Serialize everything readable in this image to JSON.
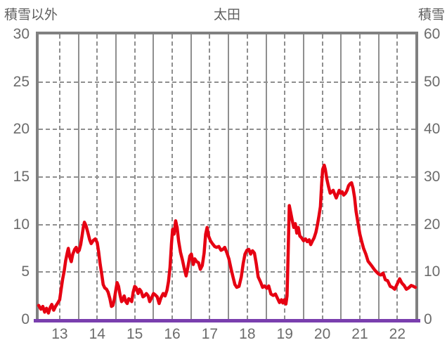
{
  "header": {
    "left_axis_title": "積雪以外",
    "station": "太田",
    "right_axis_title": "積雪"
  },
  "colors": {
    "line_red": "#e60012",
    "snow_purple": "#7a3fae",
    "frame_gray": "#808080",
    "grid_gray": "#8f8f8f",
    "text_gray": "#6b6b6b"
  },
  "chart_data": {
    "type": "line",
    "title": "太田",
    "grid": true,
    "x_axis": {
      "unit": "hour",
      "start": 12.44,
      "end": 22.48,
      "labeled_ticks": [
        13,
        14,
        15,
        16,
        17,
        18,
        19,
        20,
        21,
        22
      ],
      "tick_labels": [
        "13",
        "14",
        "15",
        "16",
        "17",
        "18",
        "19",
        "20",
        "21",
        "22"
      ],
      "half_hour_solid_lines": [
        13.5,
        14.5,
        15.5,
        16.5,
        17.5,
        18.5,
        19.5,
        20.5,
        21.5
      ]
    },
    "left_axis": {
      "title": "積雪以外",
      "min": 0,
      "max": 30,
      "ticks": [
        0,
        5,
        10,
        15,
        20,
        25,
        30
      ]
    },
    "right_axis": {
      "title": "積雪",
      "min": 0,
      "max": 60,
      "ticks": [
        0,
        10,
        20,
        30,
        40,
        50,
        60
      ]
    },
    "horizontal_gridline_values_left_axis": [
      5,
      10,
      15,
      20,
      25
    ],
    "series": [
      {
        "name": "積雪以外",
        "axis": "left",
        "color": "#e60012",
        "points": [
          [
            12.44,
            1.5
          ],
          [
            12.5,
            1.1
          ],
          [
            12.55,
            1.4
          ],
          [
            12.6,
            0.8
          ],
          [
            12.65,
            1.2
          ],
          [
            12.7,
            0.7
          ],
          [
            12.75,
            1.3
          ],
          [
            12.79,
            1.6
          ],
          [
            12.84,
            1.0
          ],
          [
            12.89,
            1.4
          ],
          [
            12.94,
            1.7
          ],
          [
            13.0,
            2.1
          ],
          [
            13.04,
            3.2
          ],
          [
            13.08,
            4.3
          ],
          [
            13.12,
            5.1
          ],
          [
            13.16,
            6.2
          ],
          [
            13.2,
            7.0
          ],
          [
            13.23,
            7.5
          ],
          [
            13.27,
            6.6
          ],
          [
            13.31,
            6.1
          ],
          [
            13.35,
            6.9
          ],
          [
            13.4,
            7.4
          ],
          [
            13.44,
            7.6
          ],
          [
            13.48,
            7.1
          ],
          [
            13.52,
            7.3
          ],
          [
            13.56,
            7.9
          ],
          [
            13.6,
            8.9
          ],
          [
            13.63,
            9.7
          ],
          [
            13.66,
            10.25
          ],
          [
            13.7,
            9.9
          ],
          [
            13.75,
            9.2
          ],
          [
            13.8,
            8.4
          ],
          [
            13.84,
            8.0
          ],
          [
            13.9,
            8.35
          ],
          [
            13.95,
            8.5
          ],
          [
            14.0,
            8.1
          ],
          [
            14.04,
            7.1
          ],
          [
            14.08,
            5.8
          ],
          [
            14.12,
            4.8
          ],
          [
            14.16,
            3.7
          ],
          [
            14.2,
            3.35
          ],
          [
            14.25,
            3.2
          ],
          [
            14.29,
            2.9
          ],
          [
            14.34,
            2.2
          ],
          [
            14.38,
            1.4
          ],
          [
            14.42,
            1.5
          ],
          [
            14.46,
            2.2
          ],
          [
            14.5,
            3.2
          ],
          [
            14.53,
            3.9
          ],
          [
            14.57,
            3.5
          ],
          [
            14.61,
            2.6
          ],
          [
            14.65,
            1.9
          ],
          [
            14.69,
            2.1
          ],
          [
            14.72,
            2.5
          ],
          [
            14.76,
            1.9
          ],
          [
            14.8,
            1.7
          ],
          [
            14.84,
            2.2
          ],
          [
            14.88,
            2.1
          ],
          [
            14.92,
            1.9
          ],
          [
            14.96,
            2.9
          ],
          [
            15.0,
            3.5
          ],
          [
            15.04,
            3.35
          ],
          [
            15.09,
            2.75
          ],
          [
            15.13,
            3.2
          ],
          [
            15.17,
            3.0
          ],
          [
            15.22,
            2.4
          ],
          [
            15.26,
            2.5
          ],
          [
            15.31,
            2.75
          ],
          [
            15.36,
            2.5
          ],
          [
            15.4,
            1.9
          ],
          [
            15.45,
            2.3
          ],
          [
            15.5,
            2.75
          ],
          [
            15.55,
            2.6
          ],
          [
            15.6,
            2.4
          ],
          [
            15.65,
            1.7
          ],
          [
            15.7,
            2.3
          ],
          [
            15.76,
            2.75
          ],
          [
            15.81,
            2.5
          ],
          [
            15.86,
            3.1
          ],
          [
            15.9,
            4.0
          ],
          [
            15.94,
            5.5
          ],
          [
            15.98,
            8.0
          ],
          [
            16.01,
            9.5
          ],
          [
            16.05,
            9.0
          ],
          [
            16.09,
            10.4
          ],
          [
            16.13,
            9.7
          ],
          [
            16.17,
            8.3
          ],
          [
            16.22,
            7.1
          ],
          [
            16.27,
            6.3
          ],
          [
            16.32,
            5.4
          ],
          [
            16.37,
            4.6
          ],
          [
            16.42,
            5.6
          ],
          [
            16.47,
            6.7
          ],
          [
            16.51,
            6.9
          ],
          [
            16.56,
            5.8
          ],
          [
            16.6,
            6.4
          ],
          [
            16.65,
            6.1
          ],
          [
            16.7,
            6.0
          ],
          [
            16.75,
            5.3
          ],
          [
            16.8,
            5.7
          ],
          [
            16.85,
            7.0
          ],
          [
            16.89,
            9.0
          ],
          [
            16.93,
            9.7
          ],
          [
            16.97,
            8.8
          ],
          [
            17.02,
            8.3
          ],
          [
            17.07,
            8.0
          ],
          [
            17.13,
            7.7
          ],
          [
            17.18,
            7.6
          ],
          [
            17.24,
            7.7
          ],
          [
            17.3,
            7.3
          ],
          [
            17.35,
            7.4
          ],
          [
            17.4,
            7.6
          ],
          [
            17.46,
            7.0
          ],
          [
            17.51,
            6.4
          ],
          [
            17.57,
            5.3
          ],
          [
            17.62,
            4.5
          ],
          [
            17.67,
            3.7
          ],
          [
            17.72,
            3.4
          ],
          [
            17.78,
            3.5
          ],
          [
            17.84,
            4.5
          ],
          [
            17.89,
            5.9
          ],
          [
            17.94,
            6.9
          ],
          [
            17.99,
            7.3
          ],
          [
            18.04,
            7.4
          ],
          [
            18.09,
            6.9
          ],
          [
            18.14,
            7.25
          ],
          [
            18.19,
            7.0
          ],
          [
            18.24,
            5.9
          ],
          [
            18.29,
            4.5
          ],
          [
            18.35,
            4.0
          ],
          [
            18.41,
            3.4
          ],
          [
            18.46,
            3.55
          ],
          [
            18.52,
            3.3
          ],
          [
            18.57,
            3.55
          ],
          [
            18.63,
            2.7
          ],
          [
            18.69,
            2.55
          ],
          [
            18.75,
            2.7
          ],
          [
            18.81,
            2.2
          ],
          [
            18.86,
            1.8
          ],
          [
            18.91,
            2.1
          ],
          [
            18.95,
            1.75
          ],
          [
            18.99,
            2.1
          ],
          [
            19.03,
            1.65
          ],
          [
            19.06,
            2.5
          ],
          [
            19.09,
            7.0
          ],
          [
            19.12,
            12.0
          ],
          [
            19.16,
            11.2
          ],
          [
            19.2,
            10.4
          ],
          [
            19.24,
            9.7
          ],
          [
            19.28,
            10.1
          ],
          [
            19.32,
            9.1
          ],
          [
            19.36,
            9.7
          ],
          [
            19.4,
            8.8
          ],
          [
            19.45,
            8.6
          ],
          [
            19.5,
            8.3
          ],
          [
            19.55,
            8.5
          ],
          [
            19.6,
            8.2
          ],
          [
            19.65,
            8.4
          ],
          [
            19.69,
            7.9
          ],
          [
            19.74,
            8.3
          ],
          [
            19.78,
            8.6
          ],
          [
            19.83,
            9.2
          ],
          [
            19.87,
            10.0
          ],
          [
            19.91,
            10.9
          ],
          [
            19.95,
            11.9
          ],
          [
            19.98,
            14.1
          ],
          [
            20.01,
            15.8
          ],
          [
            20.05,
            16.25
          ],
          [
            20.08,
            15.8
          ],
          [
            20.12,
            14.8
          ],
          [
            20.16,
            14.1
          ],
          [
            20.21,
            13.3
          ],
          [
            20.25,
            13.45
          ],
          [
            20.29,
            13.6
          ],
          [
            20.33,
            13.2
          ],
          [
            20.37,
            12.8
          ],
          [
            20.41,
            13.2
          ],
          [
            20.45,
            13.6
          ],
          [
            20.49,
            13.3
          ],
          [
            20.53,
            13.45
          ],
          [
            20.57,
            13.1
          ],
          [
            20.62,
            13.3
          ],
          [
            20.66,
            13.6
          ],
          [
            20.7,
            14.1
          ],
          [
            20.74,
            14.3
          ],
          [
            20.78,
            14.4
          ],
          [
            20.82,
            13.8
          ],
          [
            20.86,
            12.85
          ],
          [
            20.9,
            11.4
          ],
          [
            20.95,
            10.2
          ],
          [
            21.0,
            9.0
          ],
          [
            21.05,
            8.2
          ],
          [
            21.1,
            7.5
          ],
          [
            21.16,
            6.9
          ],
          [
            21.22,
            6.15
          ],
          [
            21.31,
            5.7
          ],
          [
            21.4,
            5.2
          ],
          [
            21.5,
            4.8
          ],
          [
            21.56,
            4.7
          ],
          [
            21.62,
            4.9
          ],
          [
            21.68,
            4.2
          ],
          [
            21.74,
            4.1
          ],
          [
            21.81,
            3.5
          ],
          [
            21.87,
            3.4
          ],
          [
            21.93,
            3.2
          ],
          [
            21.99,
            3.7
          ],
          [
            22.06,
            4.3
          ],
          [
            22.12,
            3.85
          ],
          [
            22.18,
            3.6
          ],
          [
            22.24,
            3.2
          ],
          [
            22.3,
            3.35
          ],
          [
            22.37,
            3.6
          ],
          [
            22.43,
            3.5
          ],
          [
            22.48,
            3.4
          ]
        ]
      },
      {
        "name": "積雪",
        "axis": "right",
        "color": "#7a3fae",
        "constant_value": 0
      }
    ]
  }
}
